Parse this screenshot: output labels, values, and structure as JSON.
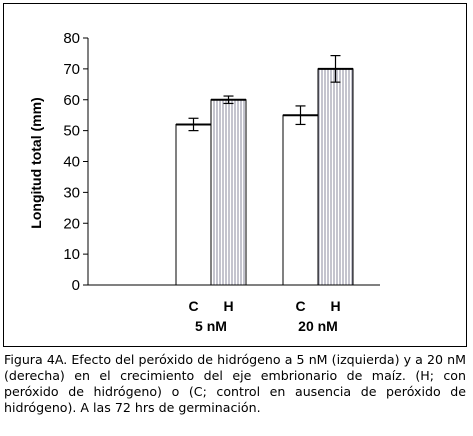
{
  "chart_data": {
    "type": "bar",
    "ylabel": "Longitud total (mm)",
    "ylim": [
      0,
      80
    ],
    "yticks": [
      0,
      10,
      20,
      30,
      40,
      50,
      60,
      70,
      80
    ],
    "groups": [
      "5 nM",
      "20 nM"
    ],
    "series": [
      {
        "name": "C",
        "values": [
          52,
          55
        ],
        "errors": [
          2,
          3
        ],
        "fill": "#ffffff",
        "pattern": "none"
      },
      {
        "name": "H",
        "values": [
          60,
          70
        ],
        "errors": [
          1.2,
          4.3
        ],
        "fill": "#ffffff",
        "pattern": "vertical-lines"
      }
    ],
    "grid": false,
    "legend": "none"
  },
  "caption": "Figura 4A. Efecto del peróxido de hidrógeno a 5 nM (izquierda) y a 20 nM (derecha) en el crecimiento del eje embrionario de maíz. (H; con peróxido de hidrógeno) o (C; control en ausencia de peróxido de hidrógeno). A las 72 hrs de germinación.",
  "colors": {
    "bar_stroke": "#000000",
    "hatch": "#8a8a9e",
    "axis": "#000000"
  }
}
